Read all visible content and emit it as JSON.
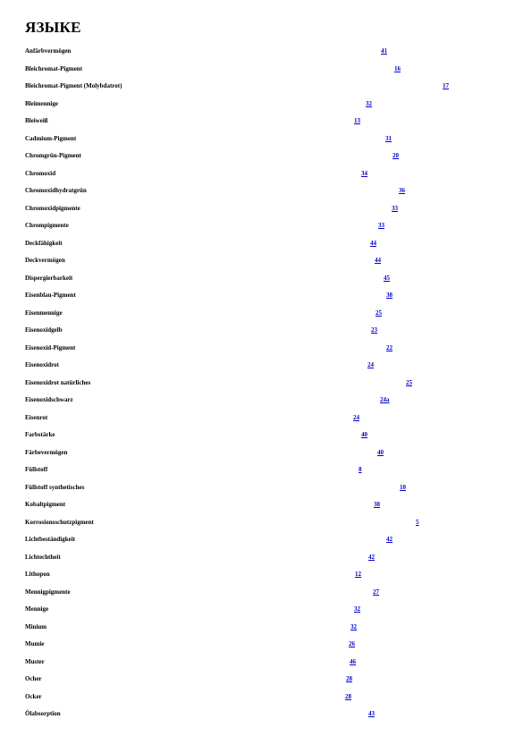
{
  "heading": "ЯЗЫКЕ",
  "link_color": "#0000cc",
  "entries": [
    {
      "term": "Anfärbvermögen",
      "page": "41"
    },
    {
      "term": "Bleichromat-Pigment",
      "page": "16"
    },
    {
      "term": "Bleichromat-Pigment (Molybdatrot)",
      "page": "17"
    },
    {
      "term": "Bleimennige",
      "page": "32"
    },
    {
      "term": "Bleiweiß",
      "page": "13"
    },
    {
      "term": "Cadmium-Pigment",
      "page": "31"
    },
    {
      "term": "Chromgrün-Pigment",
      "page": "20"
    },
    {
      "term": "Chromoxid",
      "page": "34"
    },
    {
      "term": "Chromoxidhydratgrün",
      "page": "36"
    },
    {
      "term": "Chromoxidpigmente",
      "page": "33"
    },
    {
      "term": "Chrompigmente",
      "page": "33"
    },
    {
      "term": "Deckfähigkeit",
      "page": "44"
    },
    {
      "term": "Deckvermögen",
      "page": "44"
    },
    {
      "term": "Dispergierbarkeit",
      "page": "45"
    },
    {
      "term": "Eisenblau-Pigment",
      "page": "38"
    },
    {
      "term": "Eisenmennige",
      "page": "25"
    },
    {
      "term": "Eisenoxidgelb",
      "page": "23"
    },
    {
      "term": "Eisenoxid-Pigment",
      "page": "22"
    },
    {
      "term": "Eisenoxidrot",
      "page": "24"
    },
    {
      "term": "Eisenoxidrot natürliches",
      "page": "25"
    },
    {
      "term": "Eisenoxidschwarz",
      "page": "24a"
    },
    {
      "term": "Eisenrot",
      "page": "24"
    },
    {
      "term": "Farbstärke",
      "page": "40"
    },
    {
      "term": "Färbevermögen",
      "page": "40"
    },
    {
      "term": "Füllstoff",
      "page": "8"
    },
    {
      "term": "Füllstoff synthetisches",
      "page": "10"
    },
    {
      "term": "Kobaltpigment",
      "page": "38"
    },
    {
      "term": "Korrosionsschutzpigment",
      "page": "5"
    },
    {
      "term": "Lichtbeständigkeit",
      "page": "42"
    },
    {
      "term": "Lichtechtheit",
      "page": "42"
    },
    {
      "term": "Lithopon",
      "page": "12"
    },
    {
      "term": "Mennigpigmente",
      "page": "27"
    },
    {
      "term": "Mennige",
      "page": "32"
    },
    {
      "term": "Minium",
      "page": "32"
    },
    {
      "term": "Mumie",
      "page": "26"
    },
    {
      "term": "Muster",
      "page": "46"
    },
    {
      "term": "Ocher",
      "page": "28"
    },
    {
      "term": "Ocker",
      "page": "28"
    },
    {
      "term": "Ölabsorption",
      "page": "43"
    }
  ]
}
